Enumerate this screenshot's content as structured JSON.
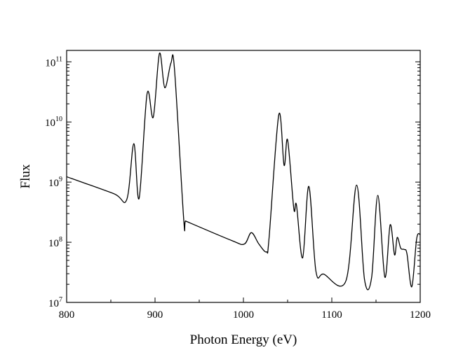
{
  "chart_data": {
    "type": "line",
    "title": "",
    "xlabel": "Photon Energy (eV)",
    "ylabel": "Flux",
    "xlim": [
      800,
      1200
    ],
    "ylim_log10": [
      7,
      11.19
    ],
    "yscale": "log",
    "grid": false,
    "legend": "none",
    "x_ticks": [
      800,
      900,
      1000,
      1100,
      1200
    ],
    "x_tick_labels": [
      "800",
      "900",
      "1000",
      "1100",
      "1200"
    ],
    "y_ticks_exp": [
      7,
      8,
      9,
      10,
      11
    ],
    "y_tick_base": "10",
    "y_tick_exponents": [
      "7",
      "8",
      "9",
      "10",
      "11"
    ],
    "series": [
      {
        "name": "Flux",
        "color": "#000000",
        "x": [
          800,
          853,
          868,
          876,
          882,
          891,
          898,
          905,
          911,
          918,
          922,
          932.5,
          935,
          986.5,
          1001,
          1009,
          1017.5,
          1026,
          1029,
          1040,
          1046,
          1050,
          1057,
          1060,
          1067,
          1074,
          1082,
          1091,
          1116,
          1128,
          1137,
          1145,
          1152,
          1160,
          1166,
          1171,
          1174,
          1178,
          1182,
          1185,
          1190.5,
          1196,
          1200
        ],
        "log10_y": [
          9.09,
          8.81,
          8.71,
          9.64,
          8.73,
          10.47,
          10.08,
          11.14,
          10.57,
          10.98,
          10.88,
          8.37,
          8.35,
          8.03,
          7.97,
          8.16,
          7.97,
          7.84,
          8.07,
          10.12,
          9.28,
          9.7,
          8.56,
          8.62,
          7.74,
          8.93,
          7.52,
          7.47,
          7.36,
          8.95,
          7.38,
          7.41,
          8.78,
          7.42,
          8.29,
          7.79,
          8.08,
          7.9,
          7.88,
          7.81,
          7.26,
          8.06,
          8.13
        ]
      }
    ]
  }
}
